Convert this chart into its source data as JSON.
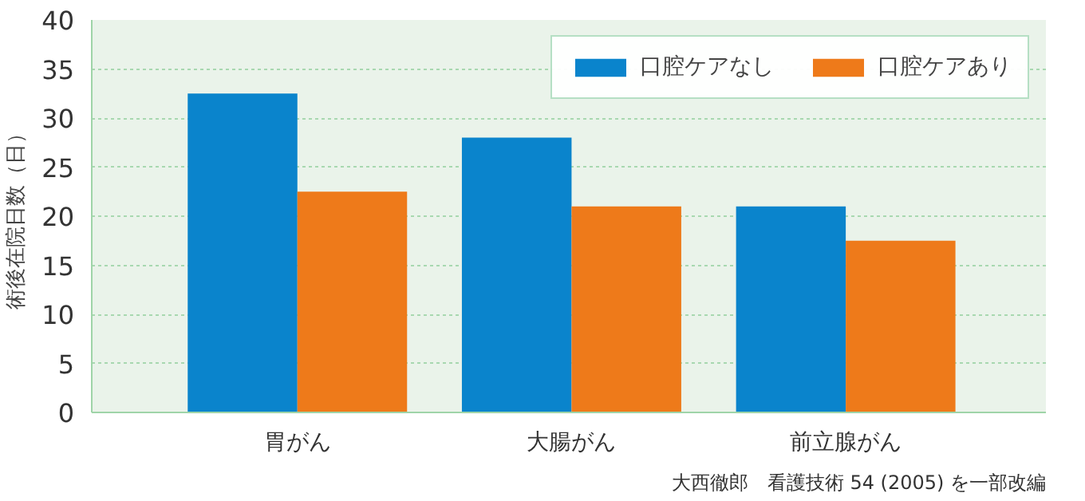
{
  "chart_data": {
    "type": "bar",
    "ylabel": "術後在院日数（日）",
    "categories": [
      "胃がん",
      "大腸がん",
      "前立腺がん"
    ],
    "series": [
      {
        "name": "口腔ケアなし",
        "color": "#0a84cc",
        "values": [
          32.5,
          28,
          21
        ]
      },
      {
        "name": "口腔ケアあり",
        "color": "#ee7a1a",
        "values": [
          22.5,
          21,
          17.5
        ]
      }
    ],
    "ylim": [
      0,
      40
    ],
    "yticks": [
      0,
      5,
      10,
      15,
      20,
      25,
      30,
      35,
      40
    ],
    "grid": "y",
    "legend": "top right",
    "annotations": [
      "大西徹郎　看護技術 54 (2005) を一部改編"
    ]
  }
}
